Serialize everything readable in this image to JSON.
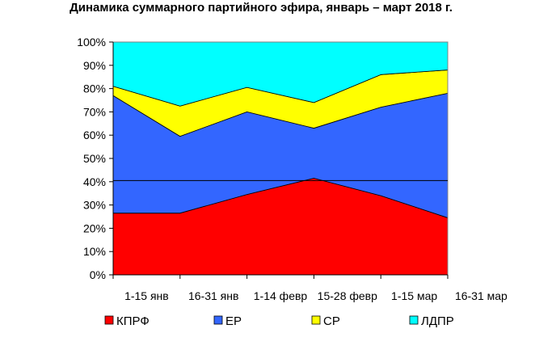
{
  "chart_data": {
    "type": "area",
    "stacked": true,
    "percent": true,
    "title": "Динамика суммарного партийного эфира, январь – март 2018 г.",
    "categories": [
      "1-15 янв",
      "16-31 янв",
      "1-14 февр",
      "15-28 февр",
      "1-15 мар",
      "16-31 мар"
    ],
    "ylim": [
      0,
      100
    ],
    "yticks": [
      "0%",
      "10%",
      "20%",
      "30%",
      "40%",
      "50%",
      "60%",
      "70%",
      "80%",
      "90%",
      "100%"
    ],
    "reference_line": 40.5,
    "legend_position": "bottom",
    "series": [
      {
        "name": "КПРФ",
        "color": "#ff0000",
        "values": [
          26.5,
          26.5,
          34.5,
          41.5,
          34,
          24.5
        ]
      },
      {
        "name": "ЕР",
        "color": "#3366ff",
        "values": [
          50.5,
          33,
          35.5,
          21.5,
          38,
          53.5
        ]
      },
      {
        "name": "СР",
        "color": "#ffff00",
        "values": [
          4,
          13,
          10.5,
          11,
          14,
          10
        ]
      },
      {
        "name": "ЛДПР",
        "color": "#00ffff",
        "values": [
          19,
          27.5,
          19.5,
          26,
          14,
          12
        ]
      }
    ]
  }
}
